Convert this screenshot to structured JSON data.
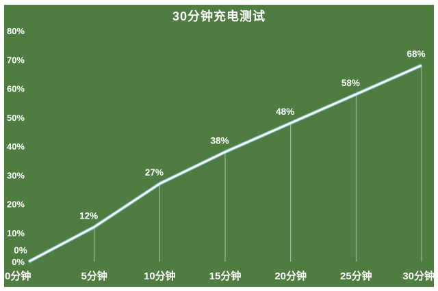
{
  "title": "30分钟充电测试",
  "colors": {
    "background": "#4e7c41",
    "frame": "#ffffff",
    "line_main": "#ffffff",
    "line_under": "#8ecdd6",
    "drop_line": "#ffffff",
    "text": "#ffffff"
  },
  "chart_data": {
    "type": "line",
    "title": "30分钟充电测试",
    "categories": [
      "0分钟",
      "5分钟",
      "10分钟",
      "15分钟",
      "20分钟",
      "25分钟",
      "30分钟"
    ],
    "values": [
      0,
      12,
      27,
      38,
      48,
      58,
      68
    ],
    "value_labels": [
      "0%",
      "12%",
      "27%",
      "38%",
      "48%",
      "58%",
      "68%"
    ],
    "y_ticks": [
      "0%",
      "10%",
      "20%",
      "30%",
      "40%",
      "50%",
      "60%",
      "70%",
      "80%"
    ],
    "y_tick_values": [
      0,
      10,
      20,
      30,
      40,
      50,
      60,
      70,
      80
    ],
    "ylim": [
      0,
      80
    ],
    "xlabel": "",
    "ylabel": "",
    "legend": "none",
    "grid": "vertical drop lines from each data point to baseline"
  }
}
